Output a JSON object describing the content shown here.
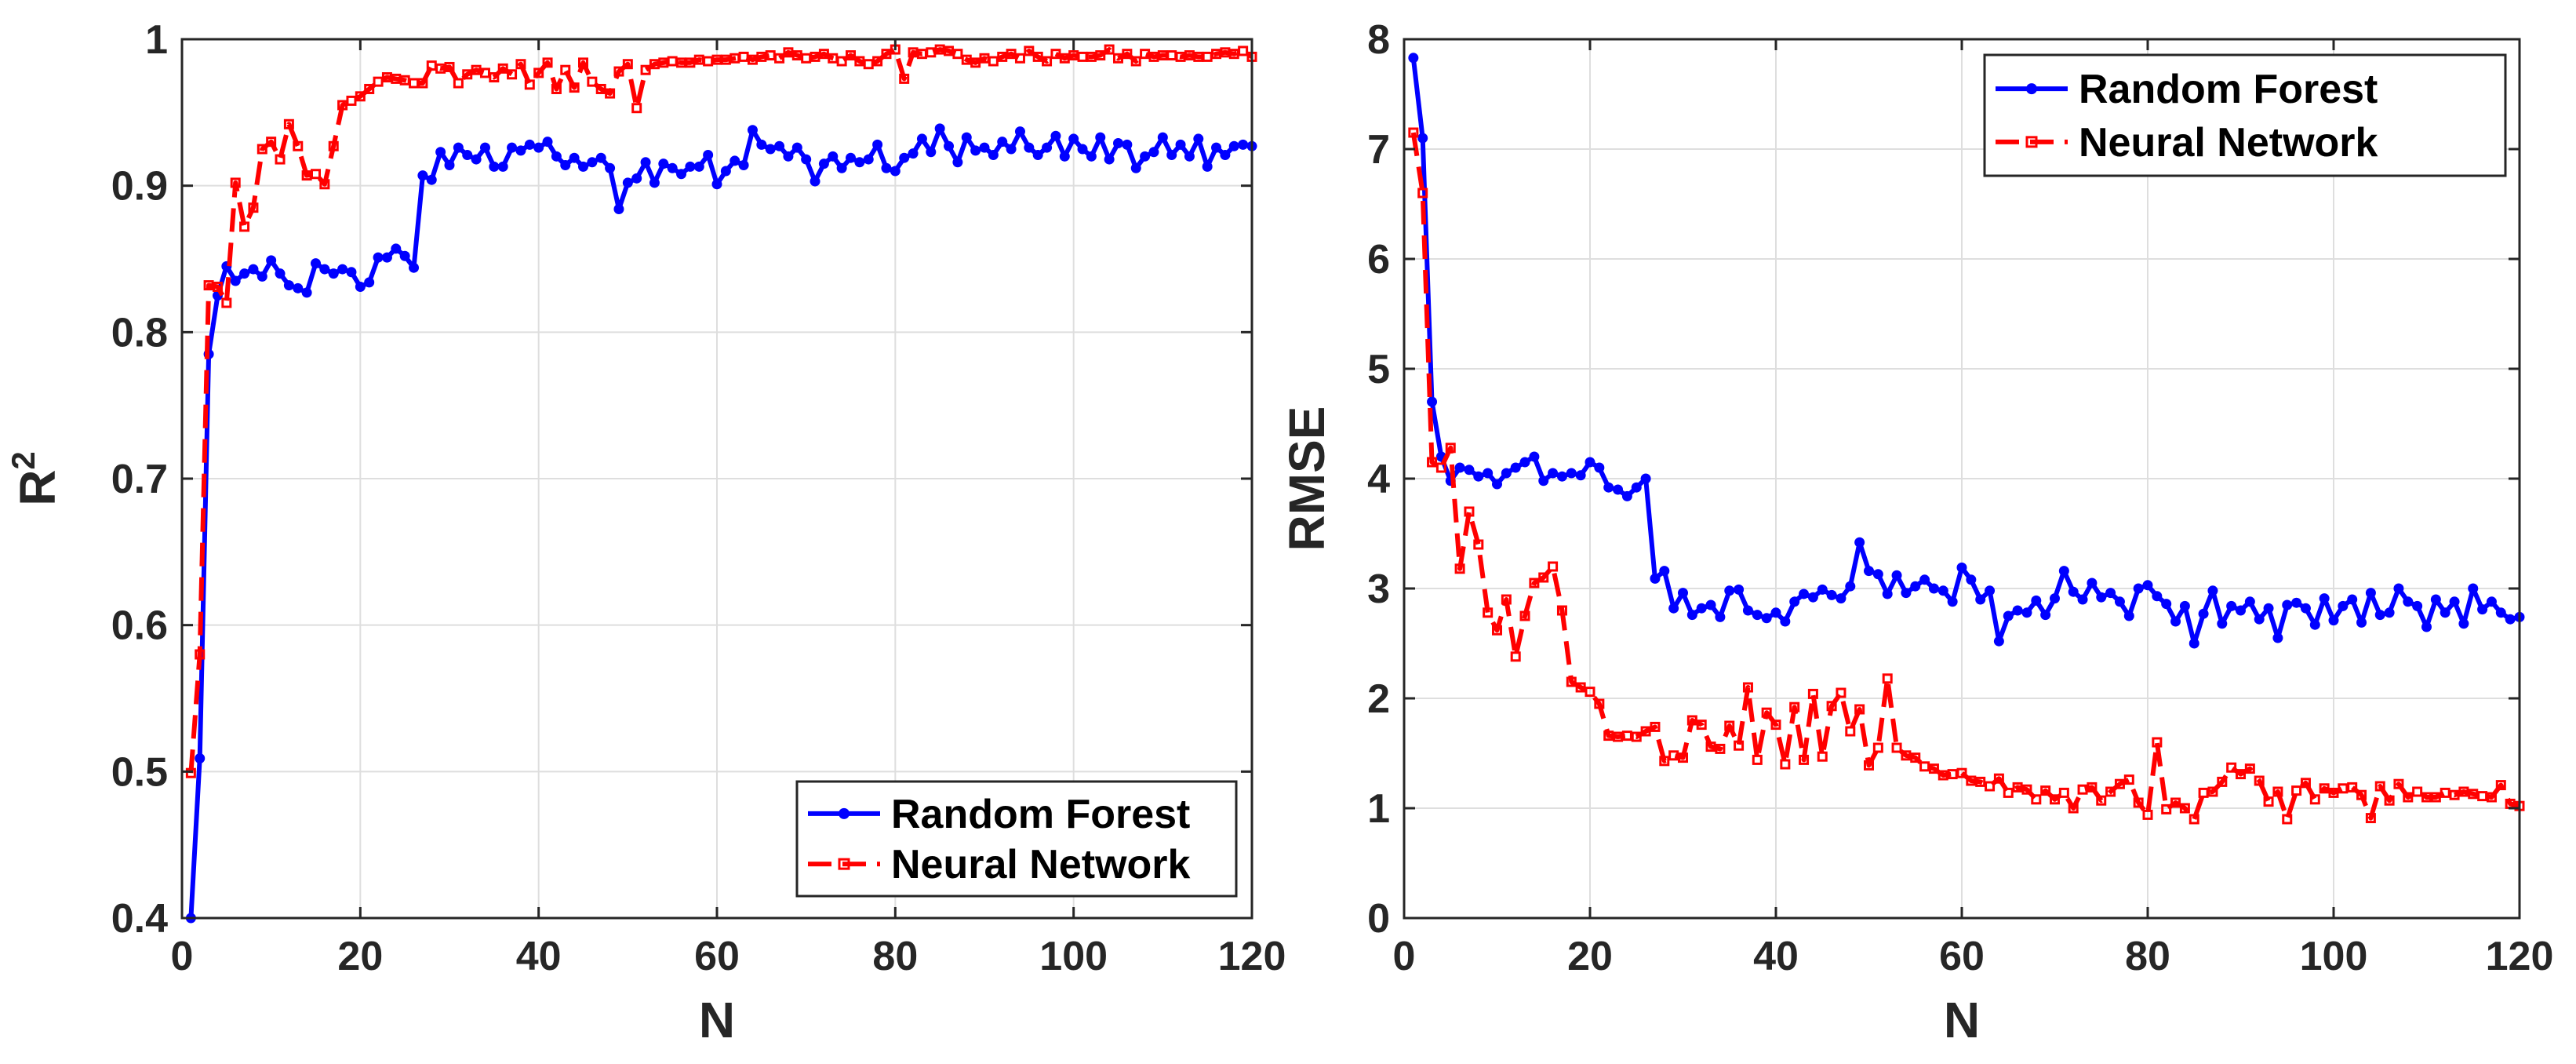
{
  "chart_data": [
    {
      "type": "line",
      "xlabel": "N",
      "ylabel": "R",
      "ylabel_sup": "2",
      "xlim": [
        0,
        120
      ],
      "ylim": [
        0.4,
        1
      ],
      "xticks": [
        0,
        20,
        40,
        60,
        80,
        100,
        120
      ],
      "yticks": [
        0.4,
        0.5,
        0.6,
        0.7,
        0.8,
        0.9,
        1
      ],
      "xtick_labels": [
        "0",
        "20",
        "40",
        "60",
        "80",
        "100",
        "120"
      ],
      "ytick_labels": [
        "0.4",
        "0.5",
        "0.6",
        "0.7",
        "0.8",
        "0.9",
        "1"
      ],
      "grid": true,
      "legend_position": "bottom-right",
      "series": [
        {
          "name": "Random Forest",
          "color": "#0000ff",
          "style": "solid",
          "marker": "dot",
          "values": [
            0.4,
            0.509,
            0.785,
            0.825,
            0.845,
            0.835,
            0.84,
            0.843,
            0.838,
            0.849,
            0.84,
            0.832,
            0.83,
            0.827,
            0.847,
            0.843,
            0.84,
            0.843,
            0.841,
            0.831,
            0.834,
            0.851,
            0.851,
            0.857,
            0.852,
            0.844,
            0.907,
            0.904,
            0.923,
            0.914,
            0.926,
            0.921,
            0.918,
            0.926,
            0.913,
            0.913,
            0.926,
            0.924,
            0.928,
            0.926,
            0.93,
            0.92,
            0.914,
            0.919,
            0.913,
            0.916,
            0.919,
            0.912,
            0.884,
            0.902,
            0.905,
            0.916,
            0.902,
            0.915,
            0.912,
            0.908,
            0.913,
            0.913,
            0.921,
            0.901,
            0.91,
            0.917,
            0.914,
            0.938,
            0.928,
            0.925,
            0.927,
            0.92,
            0.926,
            0.918,
            0.903,
            0.915,
            0.92,
            0.912,
            0.919,
            0.916,
            0.918,
            0.928,
            0.912,
            0.91,
            0.919,
            0.922,
            0.932,
            0.923,
            0.939,
            0.927,
            0.916,
            0.933,
            0.924,
            0.926,
            0.921,
            0.93,
            0.925,
            0.937,
            0.926,
            0.921,
            0.926,
            0.934,
            0.92,
            0.932,
            0.925,
            0.92,
            0.933,
            0.918,
            0.929,
            0.928,
            0.912,
            0.92,
            0.923,
            0.933,
            0.921,
            0.928,
            0.92,
            0.932,
            0.913,
            0.926,
            0.921,
            0.927,
            0.928,
            0.927
          ]
        },
        {
          "name": "Neural Network",
          "color": "#ff0000",
          "style": "dashed",
          "marker": "square",
          "values": [
            0.499,
            0.58,
            0.832,
            0.831,
            0.82,
            0.902,
            0.872,
            0.885,
            0.925,
            0.93,
            0.918,
            0.942,
            0.927,
            0.907,
            0.908,
            0.901,
            0.927,
            0.955,
            0.958,
            0.961,
            0.966,
            0.971,
            0.974,
            0.973,
            0.972,
            0.97,
            0.97,
            0.982,
            0.98,
            0.981,
            0.97,
            0.976,
            0.979,
            0.977,
            0.974,
            0.98,
            0.976,
            0.983,
            0.969,
            0.977,
            0.984,
            0.966,
            0.979,
            0.967,
            0.984,
            0.971,
            0.966,
            0.963,
            0.978,
            0.983,
            0.953,
            0.979,
            0.983,
            0.984,
            0.985,
            0.984,
            0.984,
            0.986,
            0.985,
            0.986,
            0.986,
            0.987,
            0.988,
            0.986,
            0.988,
            0.989,
            0.987,
            0.991,
            0.989,
            0.987,
            0.988,
            0.99,
            0.987,
            0.985,
            0.989,
            0.985,
            0.983,
            0.985,
            0.99,
            0.993,
            0.973,
            0.991,
            0.99,
            0.991,
            0.993,
            0.992,
            0.99,
            0.986,
            0.984,
            0.987,
            0.985,
            0.988,
            0.99,
            0.987,
            0.992,
            0.988,
            0.985,
            0.99,
            0.987,
            0.989,
            0.988,
            0.988,
            0.989,
            0.993,
            0.987,
            0.99,
            0.985,
            0.99,
            0.988,
            0.989,
            0.989,
            0.988,
            0.989,
            0.988,
            0.988,
            0.99,
            0.991,
            0.99,
            0.992,
            0.988
          ]
        }
      ]
    },
    {
      "type": "line",
      "xlabel": "N",
      "ylabel": "RMSE",
      "ylabel_sup": "",
      "xlim": [
        0,
        120
      ],
      "ylim": [
        0,
        8
      ],
      "xticks": [
        0,
        20,
        40,
        60,
        80,
        100,
        120
      ],
      "yticks": [
        0,
        1,
        2,
        3,
        4,
        5,
        6,
        7,
        8
      ],
      "xtick_labels": [
        "0",
        "20",
        "40",
        "60",
        "80",
        "100",
        "120"
      ],
      "ytick_labels": [
        "0",
        "1",
        "2",
        "3",
        "4",
        "5",
        "6",
        "7",
        "8"
      ],
      "grid": true,
      "legend_position": "top-right",
      "series": [
        {
          "name": "Random Forest",
          "color": "#0000ff",
          "style": "solid",
          "marker": "dot",
          "values": [
            7.83,
            7.1,
            4.7,
            4.2,
            3.98,
            4.1,
            4.08,
            4.02,
            4.05,
            3.95,
            4.05,
            4.1,
            4.15,
            4.2,
            3.98,
            4.05,
            4.02,
            4.05,
            4.03,
            4.15,
            4.1,
            3.92,
            3.9,
            3.84,
            3.92,
            4.0,
            3.09,
            3.16,
            2.82,
            2.96,
            2.76,
            2.82,
            2.85,
            2.74,
            2.98,
            2.99,
            2.8,
            2.76,
            2.73,
            2.78,
            2.7,
            2.88,
            2.95,
            2.92,
            2.99,
            2.94,
            2.91,
            3.02,
            3.42,
            3.16,
            3.13,
            2.95,
            3.12,
            2.96,
            3.02,
            3.08,
            3.0,
            2.98,
            2.88,
            3.19,
            3.08,
            2.9,
            2.98,
            2.52,
            2.75,
            2.8,
            2.78,
            2.89,
            2.76,
            2.91,
            3.16,
            2.97,
            2.9,
            3.05,
            2.92,
            2.96,
            2.88,
            2.75,
            3.0,
            3.03,
            2.93,
            2.86,
            2.7,
            2.84,
            2.5,
            2.77,
            2.98,
            2.68,
            2.84,
            2.8,
            2.88,
            2.72,
            2.82,
            2.55,
            2.85,
            2.87,
            2.82,
            2.67,
            2.91,
            2.71,
            2.84,
            2.9,
            2.69,
            2.96,
            2.76,
            2.78,
            3.0,
            2.88,
            2.84,
            2.65,
            2.9,
            2.78,
            2.88,
            2.68,
            3.0,
            2.81,
            2.88,
            2.78,
            2.72,
            2.74
          ]
        },
        {
          "name": "Neural Network",
          "color": "#ff0000",
          "style": "dashed",
          "marker": "square",
          "values": [
            7.15,
            6.6,
            4.15,
            4.1,
            4.28,
            3.18,
            3.7,
            3.4,
            2.78,
            2.62,
            2.9,
            2.38,
            2.75,
            3.05,
            3.1,
            3.2,
            2.8,
            2.15,
            2.1,
            2.06,
            1.95,
            1.66,
            1.65,
            1.66,
            1.65,
            1.7,
            1.74,
            1.43,
            1.48,
            1.46,
            1.8,
            1.76,
            1.56,
            1.54,
            1.75,
            1.57,
            2.1,
            1.44,
            1.87,
            1.76,
            1.4,
            1.92,
            1.44,
            2.04,
            1.47,
            1.93,
            2.05,
            1.7,
            1.9,
            1.39,
            1.55,
            2.18,
            1.55,
            1.48,
            1.46,
            1.38,
            1.36,
            1.3,
            1.31,
            1.32,
            1.25,
            1.24,
            1.2,
            1.27,
            1.14,
            1.19,
            1.17,
            1.08,
            1.16,
            1.08,
            1.14,
            1.0,
            1.17,
            1.19,
            1.07,
            1.15,
            1.22,
            1.26,
            1.05,
            0.94,
            1.6,
            0.99,
            1.05,
            1.0,
            0.9,
            1.14,
            1.15,
            1.24,
            1.37,
            1.31,
            1.36,
            1.25,
            1.06,
            1.15,
            0.9,
            1.16,
            1.23,
            1.08,
            1.18,
            1.14,
            1.18,
            1.19,
            1.12,
            0.91,
            1.2,
            1.07,
            1.22,
            1.1,
            1.15,
            1.1,
            1.1,
            1.14,
            1.12,
            1.15,
            1.13,
            1.11,
            1.1,
            1.21,
            1.04,
            1.02
          ]
        }
      ]
    }
  ]
}
